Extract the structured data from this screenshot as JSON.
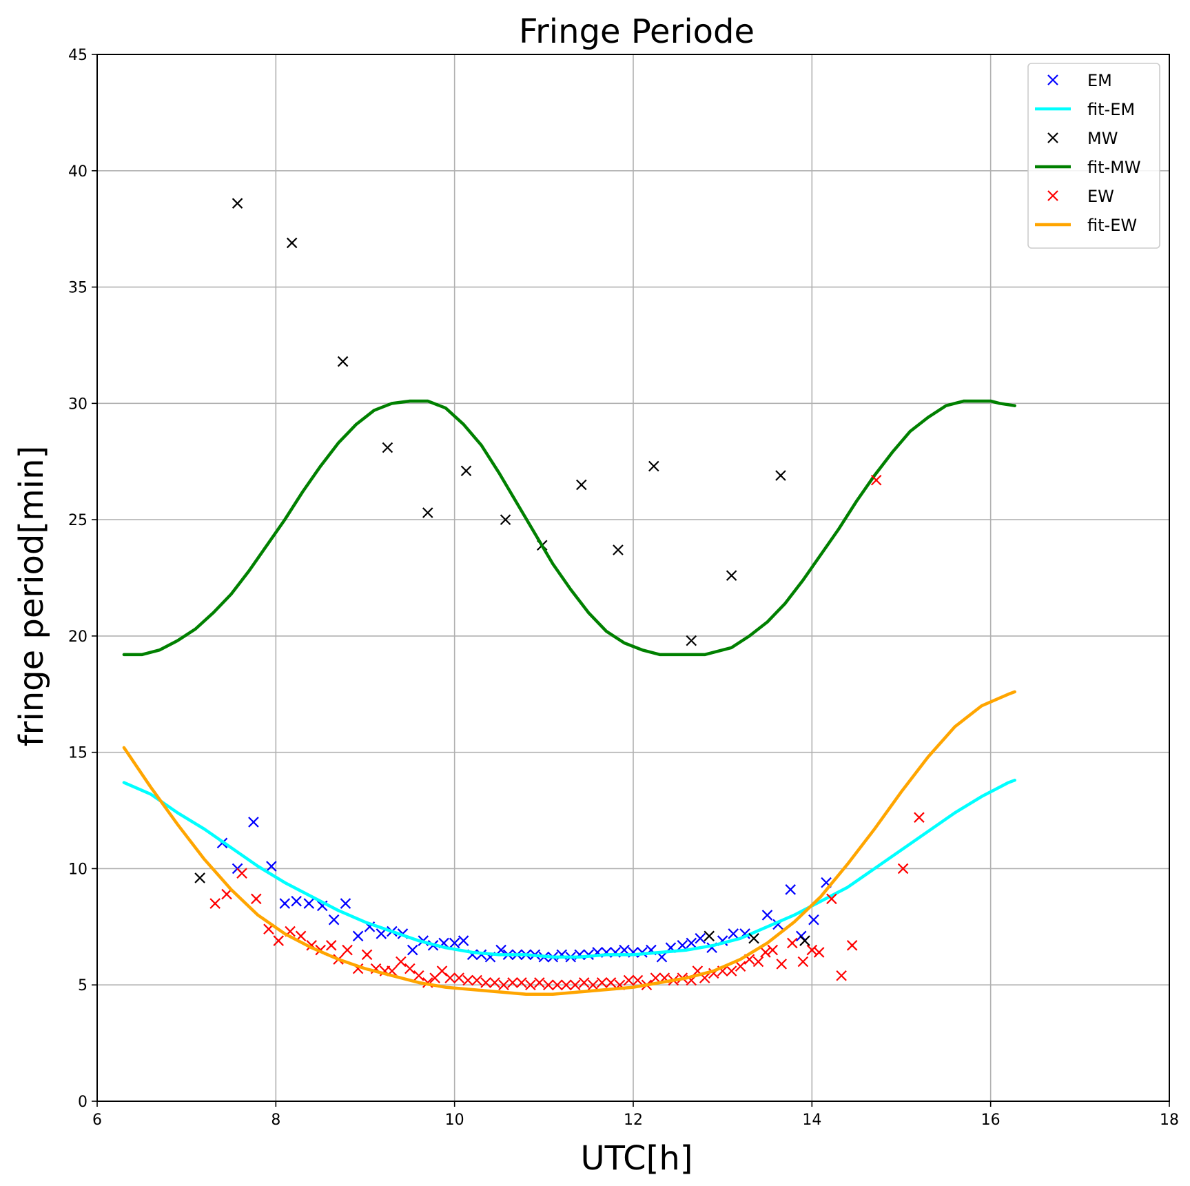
{
  "chart_data": {
    "type": "scatter",
    "title": "Fringe Periode",
    "xlabel": "UTC[h]",
    "ylabel": "fringe period[min]",
    "xlim": [
      6,
      18
    ],
    "ylim": [
      0,
      45
    ],
    "xticks": [
      6,
      8,
      10,
      12,
      14,
      16,
      18
    ],
    "yticks": [
      0,
      5,
      10,
      15,
      20,
      25,
      30,
      35,
      40,
      45
    ],
    "grid": true,
    "legend_position": "top-right",
    "series": [
      {
        "name": "EM",
        "kind": "scatter",
        "marker": "x",
        "color": "#0000ff",
        "x": [
          7.4,
          7.57,
          7.75,
          7.95,
          8.1,
          8.23,
          8.37,
          8.52,
          8.65,
          8.78,
          8.92,
          9.05,
          9.18,
          9.3,
          9.42,
          9.53,
          9.65,
          9.76,
          9.88,
          10.0,
          10.1,
          10.2,
          10.3,
          10.4,
          10.52,
          10.6,
          10.7,
          10.8,
          10.9,
          11.0,
          11.1,
          11.2,
          11.3,
          11.4,
          11.5,
          11.6,
          11.7,
          11.8,
          11.9,
          12.0,
          12.1,
          12.2,
          12.32,
          12.42,
          12.55,
          12.65,
          12.75,
          12.88,
          13.0,
          13.12,
          13.25,
          13.5,
          13.62,
          13.76,
          13.88,
          14.02,
          14.16
        ],
        "y": [
          11.1,
          10.0,
          12.0,
          10.1,
          8.5,
          8.6,
          8.5,
          8.4,
          7.8,
          8.5,
          7.1,
          7.5,
          7.2,
          7.3,
          7.2,
          6.5,
          6.9,
          6.7,
          6.8,
          6.8,
          6.9,
          6.3,
          6.3,
          6.2,
          6.5,
          6.3,
          6.3,
          6.3,
          6.3,
          6.2,
          6.2,
          6.3,
          6.2,
          6.3,
          6.3,
          6.4,
          6.4,
          6.4,
          6.5,
          6.4,
          6.4,
          6.5,
          6.2,
          6.6,
          6.7,
          6.8,
          7.0,
          6.6,
          6.9,
          7.2,
          7.2,
          8.0,
          7.6,
          9.1,
          7.1,
          7.8,
          9.4
        ]
      },
      {
        "name": "fit-EM",
        "kind": "line",
        "color": "#00ffff",
        "x": [
          6.3,
          6.6,
          6.9,
          7.2,
          7.5,
          7.8,
          8.1,
          8.4,
          8.7,
          9.0,
          9.3,
          9.6,
          9.9,
          10.2,
          10.5,
          10.8,
          11.1,
          11.4,
          11.7,
          12.0,
          12.3,
          12.6,
          12.9,
          13.2,
          13.5,
          13.8,
          14.1,
          14.4,
          14.7,
          15.0,
          15.3,
          15.6,
          15.9,
          16.2,
          16.27
        ],
        "y": [
          13.7,
          13.2,
          12.4,
          11.7,
          10.9,
          10.1,
          9.4,
          8.8,
          8.2,
          7.7,
          7.3,
          6.9,
          6.6,
          6.4,
          6.3,
          6.3,
          6.2,
          6.2,
          6.3,
          6.3,
          6.4,
          6.5,
          6.7,
          7.0,
          7.5,
          8.0,
          8.6,
          9.2,
          10.0,
          10.8,
          11.6,
          12.4,
          13.1,
          13.7,
          13.8
        ]
      },
      {
        "name": "MW",
        "kind": "scatter",
        "marker": "x",
        "color": "#000000",
        "x": [
          7.15,
          7.57,
          8.18,
          8.75,
          9.25,
          9.7,
          10.13,
          10.57,
          10.98,
          11.42,
          11.83,
          12.23,
          12.65,
          13.1,
          13.65,
          12.85,
          13.35,
          13.92
        ],
        "y": [
          9.6,
          38.6,
          36.9,
          31.8,
          28.1,
          25.3,
          27.1,
          25.0,
          23.9,
          26.5,
          23.7,
          27.3,
          19.8,
          22.6,
          26.9,
          7.1,
          7.0,
          6.9
        ]
      },
      {
        "name": "fit-MW",
        "kind": "line",
        "color": "#008000",
        "x": [
          6.3,
          6.5,
          6.7,
          6.9,
          7.1,
          7.3,
          7.5,
          7.7,
          7.9,
          8.1,
          8.3,
          8.5,
          8.7,
          8.9,
          9.1,
          9.3,
          9.5,
          9.6,
          9.7,
          9.9,
          10.1,
          10.3,
          10.5,
          10.7,
          10.9,
          11.1,
          11.3,
          11.5,
          11.7,
          11.9,
          12.1,
          12.3,
          12.5,
          12.7,
          12.8,
          12.9,
          13.1,
          13.3,
          13.5,
          13.7,
          13.9,
          14.1,
          14.3,
          14.5,
          14.7,
          14.9,
          15.1,
          15.3,
          15.5,
          15.7,
          15.9,
          16.0,
          16.1,
          16.27
        ],
        "y": [
          19.2,
          19.2,
          19.4,
          19.8,
          20.3,
          21.0,
          21.8,
          22.8,
          23.9,
          25.0,
          26.2,
          27.3,
          28.3,
          29.1,
          29.7,
          30.0,
          30.1,
          30.1,
          30.1,
          29.8,
          29.1,
          28.2,
          27.0,
          25.7,
          24.4,
          23.1,
          22.0,
          21.0,
          20.2,
          19.7,
          19.4,
          19.2,
          19.2,
          19.2,
          19.2,
          19.3,
          19.5,
          20.0,
          20.6,
          21.4,
          22.4,
          23.5,
          24.6,
          25.8,
          26.9,
          27.9,
          28.8,
          29.4,
          29.9,
          30.1,
          30.1,
          30.1,
          30.0,
          29.9
        ]
      },
      {
        "name": "EW",
        "kind": "scatter",
        "marker": "x",
        "color": "#ff0000",
        "x": [
          7.32,
          7.45,
          7.62,
          7.78,
          7.92,
          8.03,
          8.16,
          8.28,
          8.4,
          8.5,
          8.62,
          8.7,
          8.8,
          8.92,
          9.02,
          9.12,
          9.22,
          9.3,
          9.4,
          9.5,
          9.6,
          9.7,
          9.78,
          9.86,
          9.95,
          10.05,
          10.15,
          10.25,
          10.35,
          10.45,
          10.55,
          10.65,
          10.75,
          10.85,
          10.95,
          11.05,
          11.15,
          11.25,
          11.35,
          11.45,
          11.55,
          11.65,
          11.75,
          11.85,
          11.95,
          12.05,
          12.15,
          12.25,
          12.35,
          12.45,
          12.55,
          12.65,
          12.72,
          12.8,
          12.9,
          13.0,
          13.1,
          13.2,
          13.3,
          13.4,
          13.48,
          13.56,
          13.66,
          13.78,
          13.9,
          14.0,
          14.08,
          14.22,
          14.33,
          14.45,
          14.72,
          15.02,
          15.2
        ],
        "y": [
          8.5,
          8.9,
          9.8,
          8.7,
          7.4,
          6.9,
          7.3,
          7.1,
          6.7,
          6.5,
          6.7,
          6.1,
          6.5,
          5.7,
          6.3,
          5.7,
          5.6,
          5.6,
          6.0,
          5.7,
          5.4,
          5.1,
          5.3,
          5.6,
          5.3,
          5.3,
          5.2,
          5.2,
          5.1,
          5.1,
          5.0,
          5.1,
          5.1,
          5.0,
          5.1,
          5.0,
          5.0,
          5.0,
          5.0,
          5.1,
          5.0,
          5.1,
          5.1,
          5.0,
          5.2,
          5.2,
          5.0,
          5.3,
          5.3,
          5.2,
          5.3,
          5.2,
          5.6,
          5.3,
          5.5,
          5.6,
          5.6,
          5.8,
          6.1,
          6.0,
          6.4,
          6.5,
          5.9,
          6.8,
          6.0,
          6.5,
          6.4,
          8.7,
          5.4,
          6.7,
          26.7,
          10.0,
          12.2
        ]
      },
      {
        "name": "fit-EW",
        "kind": "line",
        "color": "#ffa500",
        "x": [
          6.3,
          6.6,
          6.9,
          7.2,
          7.5,
          7.8,
          8.1,
          8.4,
          8.7,
          9.0,
          9.3,
          9.6,
          9.9,
          10.2,
          10.5,
          10.8,
          11.1,
          11.4,
          11.7,
          12.0,
          12.3,
          12.6,
          12.9,
          13.2,
          13.5,
          13.8,
          14.1,
          14.4,
          14.7,
          15.0,
          15.3,
          15.6,
          15.9,
          16.2,
          16.27
        ],
        "y": [
          15.2,
          13.5,
          11.9,
          10.4,
          9.1,
          8.0,
          7.2,
          6.6,
          6.1,
          5.7,
          5.4,
          5.1,
          4.9,
          4.8,
          4.7,
          4.6,
          4.6,
          4.7,
          4.8,
          4.9,
          5.1,
          5.3,
          5.6,
          6.1,
          6.8,
          7.7,
          8.8,
          10.2,
          11.7,
          13.3,
          14.8,
          16.1,
          17.0,
          17.5,
          17.6
        ]
      }
    ]
  }
}
